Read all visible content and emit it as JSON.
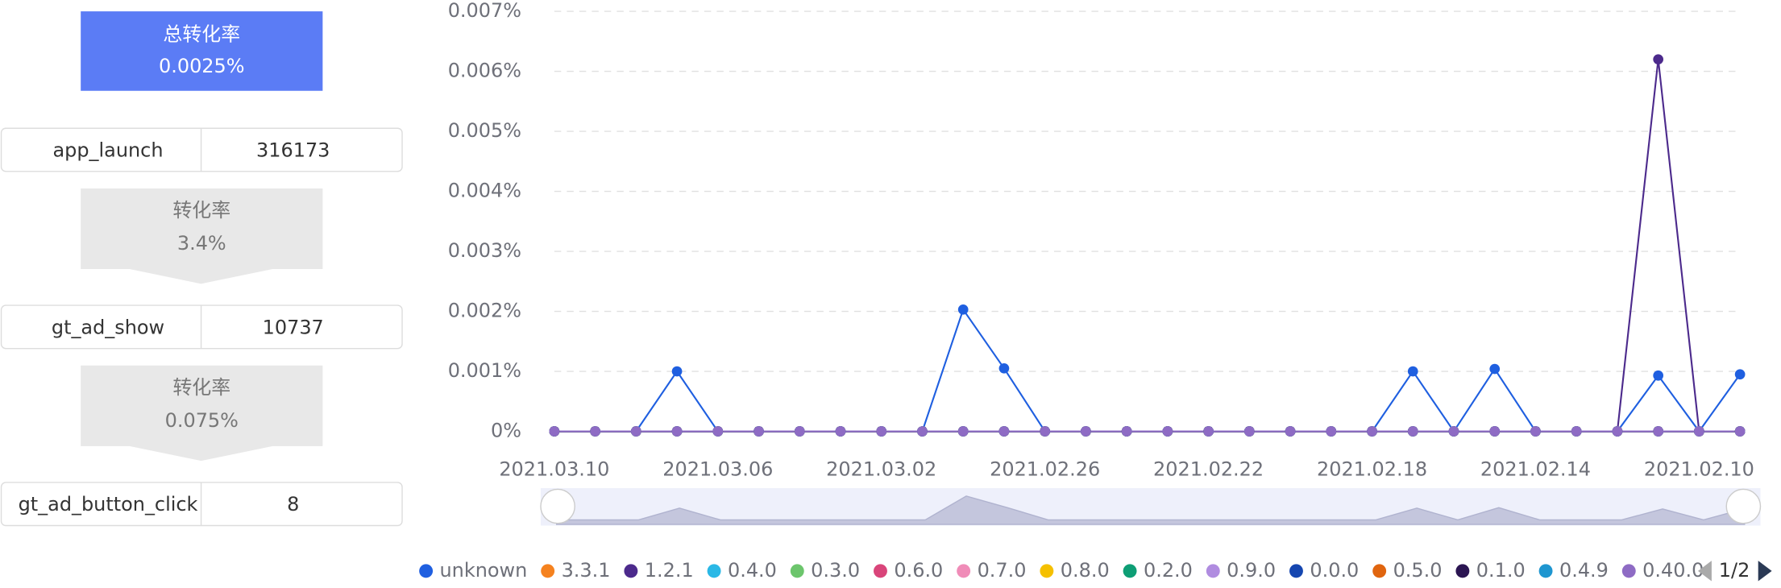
{
  "funnel": {
    "total_label": "总转化率",
    "total_rate": "0.0025%",
    "steps": [
      {
        "name": "app_launch",
        "count": 316173
      },
      {
        "name": "gt_ad_show",
        "count": 10737
      },
      {
        "name": "gt_ad_button_click",
        "count": 8
      }
    ],
    "conversions": [
      {
        "label": "转化率",
        "rate": "3.4%"
      },
      {
        "label": "转化率",
        "rate": "0.075%"
      }
    ]
  },
  "chart_data": {
    "type": "line",
    "categories": [
      "2021.03.10",
      null,
      null,
      null,
      "2021.03.06",
      null,
      null,
      null,
      "2021.03.02",
      null,
      null,
      null,
      "2021.02.26",
      null,
      null,
      null,
      "2021.02.22",
      null,
      null,
      null,
      "2021.02.18",
      null,
      null,
      null,
      "2021.02.14",
      null,
      null,
      null,
      "2021.02.10",
      null
    ],
    "ylim": [
      0,
      0.007
    ],
    "yticks": [
      {
        "value": 0,
        "label": "0%"
      },
      {
        "value": 0.001,
        "label": "0.001%"
      },
      {
        "value": 0.002,
        "label": "0.002%"
      },
      {
        "value": 0.003,
        "label": "0.003%"
      },
      {
        "value": 0.004,
        "label": "0.004%"
      },
      {
        "value": 0.005,
        "label": "0.005%"
      },
      {
        "value": 0.006,
        "label": "0.006%"
      },
      {
        "value": 0.007,
        "label": "0.007%"
      }
    ],
    "grid": true,
    "legend_page": "1/2",
    "series": [
      {
        "name": "unknown",
        "color": "#1f5fe0",
        "values": [
          0,
          0,
          0,
          0.001,
          0,
          0,
          0,
          0,
          0,
          0,
          0.00203,
          0.00105,
          0,
          0,
          0,
          0,
          0,
          0,
          0,
          0,
          0,
          0.001,
          0,
          0.00104,
          0,
          0,
          0,
          0.00093,
          0,
          0.00095
        ]
      },
      {
        "name": "3.3.1",
        "color": "#f5821f",
        "values": [
          0,
          0,
          0,
          0,
          0,
          0,
          0,
          0,
          0,
          0,
          0,
          0,
          0,
          0,
          0,
          0,
          0,
          0,
          0,
          0,
          0,
          0,
          0,
          0,
          0,
          0,
          0,
          0,
          0,
          0
        ]
      },
      {
        "name": "1.2.1",
        "color": "#4c2a8c",
        "values": [
          0,
          0,
          0,
          0,
          0,
          0,
          0,
          0,
          0,
          0,
          0,
          0,
          0,
          0,
          0,
          0,
          0,
          0,
          0,
          0,
          0,
          0,
          0,
          0,
          0,
          0,
          0,
          0.0062,
          0,
          0
        ]
      },
      {
        "name": "0.4.0",
        "color": "#2ab8e6",
        "values": [
          0,
          0,
          0,
          0,
          0,
          0,
          0,
          0,
          0,
          0,
          0,
          0,
          0,
          0,
          0,
          0,
          0,
          0,
          0,
          0,
          0,
          0,
          0,
          0,
          0,
          0,
          0,
          0,
          0,
          0
        ]
      },
      {
        "name": "0.3.0",
        "color": "#6cc56c",
        "values": [
          0,
          0,
          0,
          0,
          0,
          0,
          0,
          0,
          0,
          0,
          0,
          0,
          0,
          0,
          0,
          0,
          0,
          0,
          0,
          0,
          0,
          0,
          0,
          0,
          0,
          0,
          0,
          0,
          0,
          0
        ]
      },
      {
        "name": "0.6.0",
        "color": "#d9457a",
        "values": [
          0,
          0,
          0,
          0,
          0,
          0,
          0,
          0,
          0,
          0,
          0,
          0,
          0,
          0,
          0,
          0,
          0,
          0,
          0,
          0,
          0,
          0,
          0,
          0,
          0,
          0,
          0,
          0,
          0,
          0
        ]
      },
      {
        "name": "0.7.0",
        "color": "#f08cb8",
        "values": [
          0,
          0,
          0,
          0,
          0,
          0,
          0,
          0,
          0,
          0,
          0,
          0,
          0,
          0,
          0,
          0,
          0,
          0,
          0,
          0,
          0,
          0,
          0,
          0,
          0,
          0,
          0,
          0,
          0,
          0
        ]
      },
      {
        "name": "0.8.0",
        "color": "#f5c000",
        "values": [
          0,
          0,
          0,
          0,
          0,
          0,
          0,
          0,
          0,
          0,
          0,
          0,
          0,
          0,
          0,
          0,
          0,
          0,
          0,
          0,
          0,
          0,
          0,
          0,
          0,
          0,
          0,
          0,
          0,
          0
        ]
      },
      {
        "name": "0.2.0",
        "color": "#0e9e75",
        "values": [
          0,
          0,
          0,
          0,
          0,
          0,
          0,
          0,
          0,
          0,
          0,
          0,
          0,
          0,
          0,
          0,
          0,
          0,
          0,
          0,
          0,
          0,
          0,
          0,
          0,
          0,
          0,
          0,
          0,
          0
        ]
      },
      {
        "name": "0.9.0",
        "color": "#b08ce0",
        "values": [
          0,
          0,
          0,
          0,
          0,
          0,
          0,
          0,
          0,
          0,
          0,
          0,
          0,
          0,
          0,
          0,
          0,
          0,
          0,
          0,
          0,
          0,
          0,
          0,
          0,
          0,
          0,
          0,
          0,
          0
        ]
      },
      {
        "name": "0.0.0",
        "color": "#1546b0",
        "values": [
          0,
          0,
          0,
          0,
          0,
          0,
          0,
          0,
          0,
          0,
          0,
          0,
          0,
          0,
          0,
          0,
          0,
          0,
          0,
          0,
          0,
          0,
          0,
          0,
          0,
          0,
          0,
          0,
          0,
          0
        ]
      },
      {
        "name": "0.5.0",
        "color": "#e0650f",
        "values": [
          0,
          0,
          0,
          0,
          0,
          0,
          0,
          0,
          0,
          0,
          0,
          0,
          0,
          0,
          0,
          0,
          0,
          0,
          0,
          0,
          0,
          0,
          0,
          0,
          0,
          0,
          0,
          0,
          0,
          0
        ]
      },
      {
        "name": "0.1.0",
        "color": "#2b1552",
        "values": [
          0,
          0,
          0,
          0,
          0,
          0,
          0,
          0,
          0,
          0,
          0,
          0,
          0,
          0,
          0,
          0,
          0,
          0,
          0,
          0,
          0,
          0,
          0,
          0,
          0,
          0,
          0,
          0,
          0,
          0
        ]
      },
      {
        "name": "0.4.9",
        "color": "#1e96d0",
        "values": [
          0,
          0,
          0,
          0,
          0,
          0,
          0,
          0,
          0,
          0,
          0,
          0,
          0,
          0,
          0,
          0,
          0,
          0,
          0,
          0,
          0,
          0,
          0,
          0,
          0,
          0,
          0,
          0,
          0,
          0
        ]
      },
      {
        "name": "0.40.0",
        "color": "#8e6bc4",
        "values": [
          0,
          0,
          0,
          0,
          0,
          0,
          0,
          0,
          0,
          0,
          0,
          0,
          0,
          0,
          0,
          0,
          0,
          0,
          0,
          0,
          0,
          0,
          0,
          0,
          0,
          0,
          0,
          0,
          0,
          0
        ]
      }
    ]
  }
}
